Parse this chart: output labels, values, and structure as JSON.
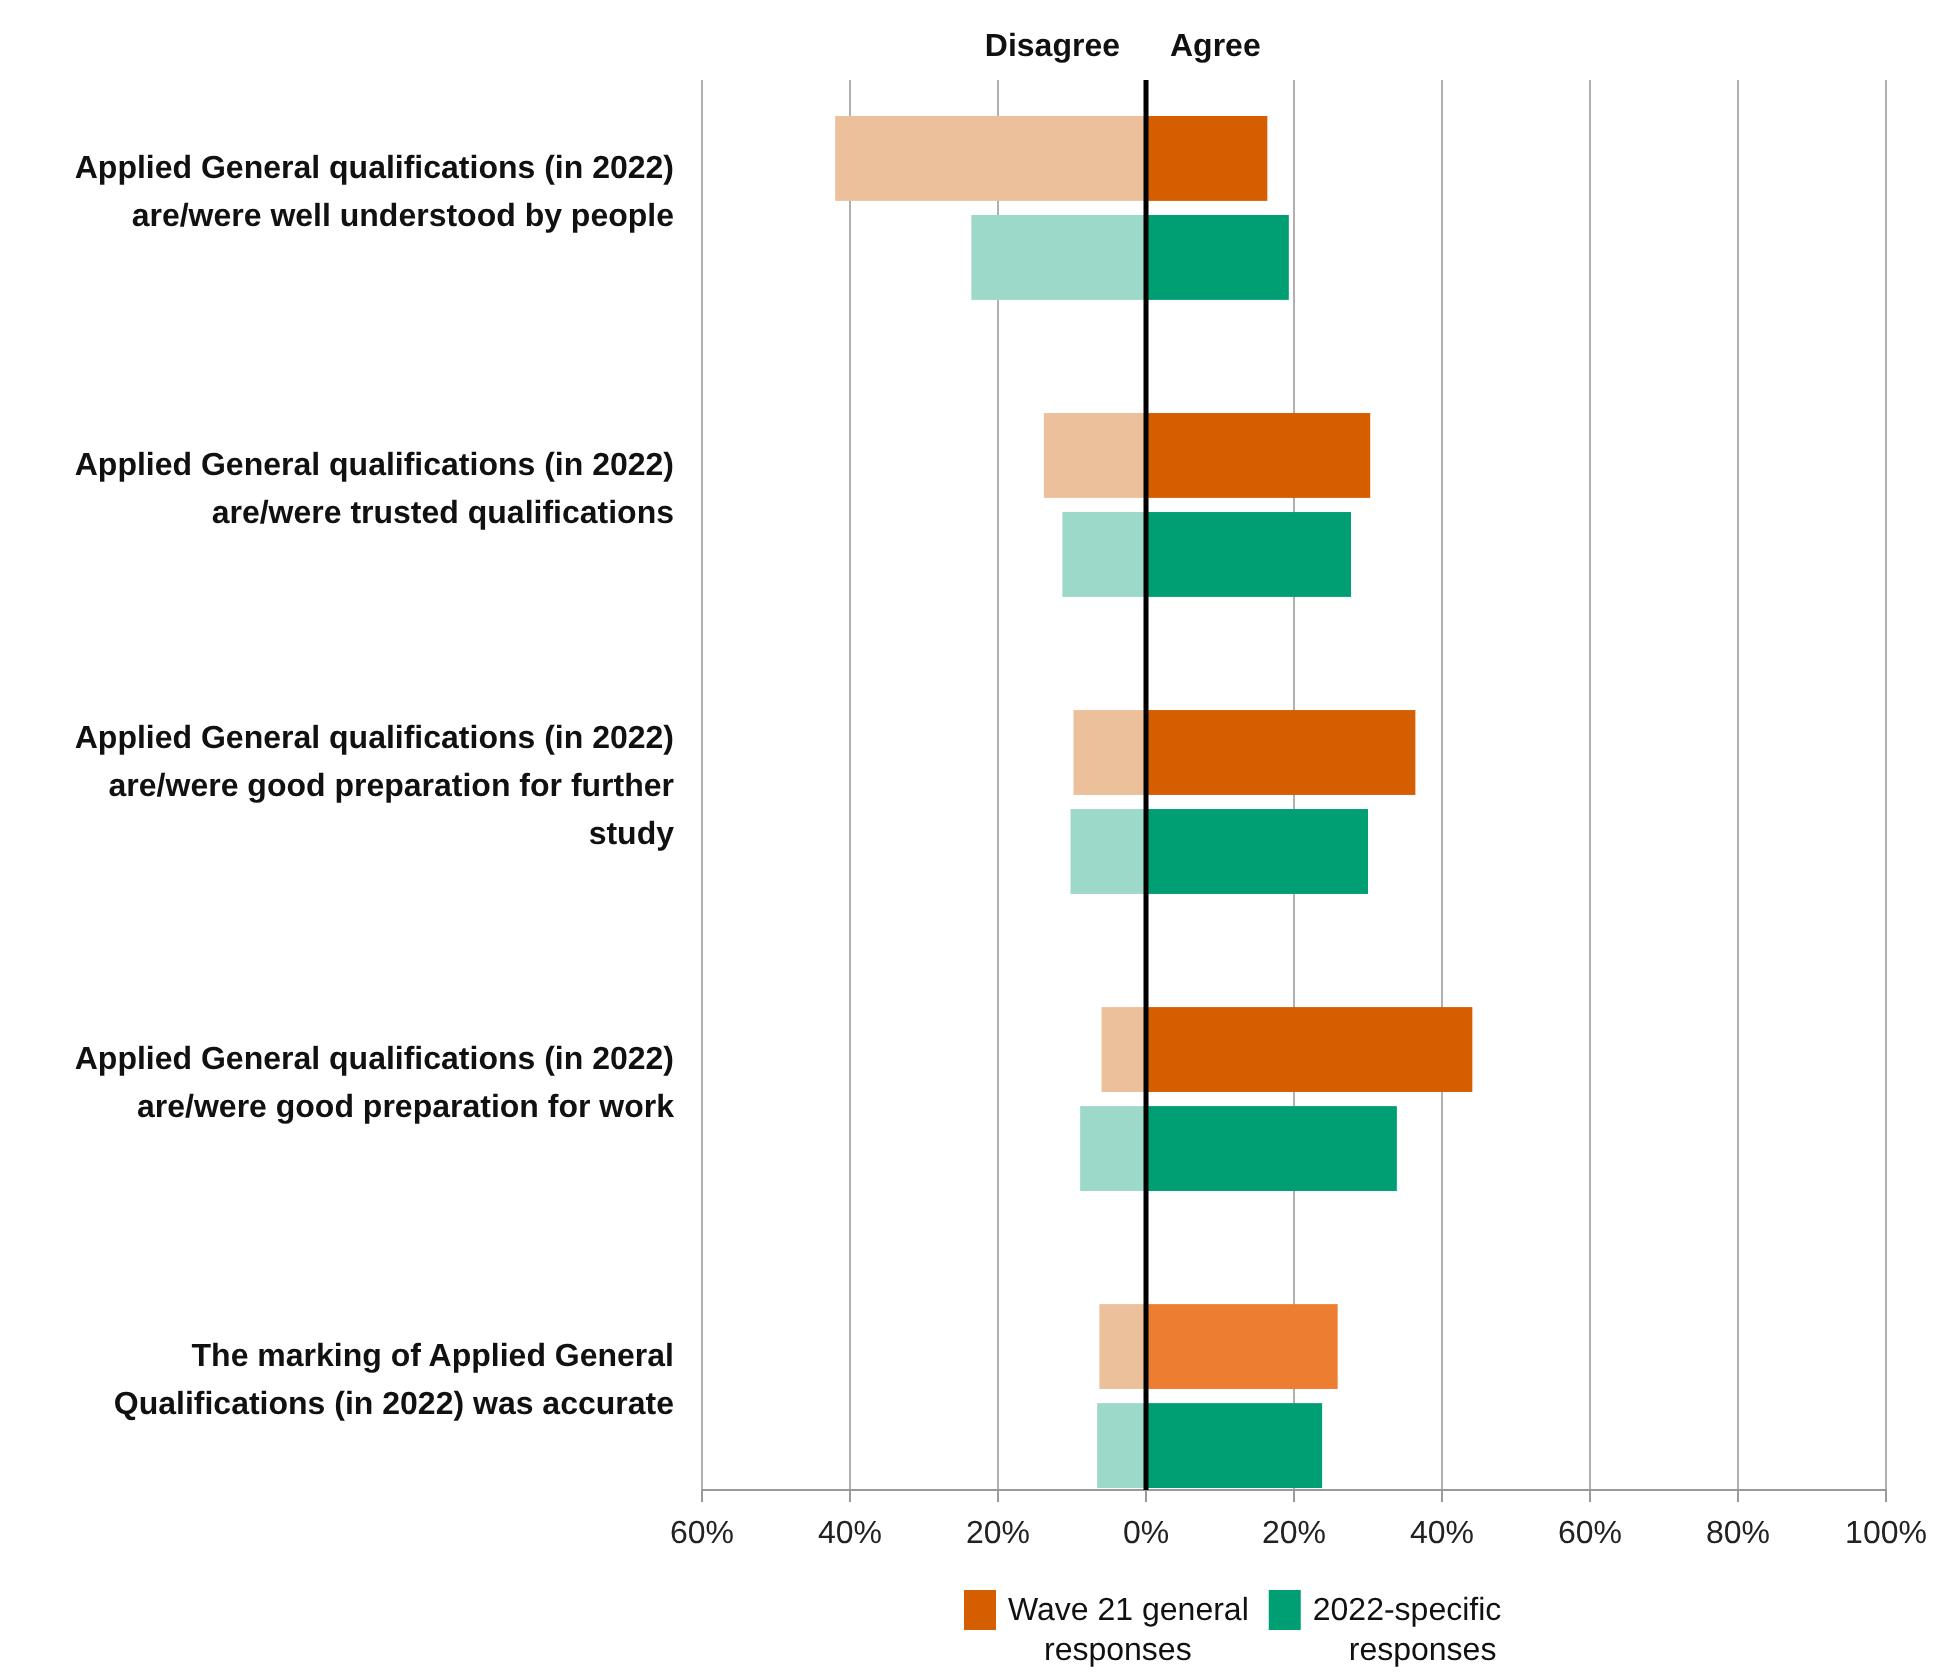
{
  "chart_data": {
    "type": "bar",
    "orientation": "horizontal",
    "stacked": true,
    "categories": [
      "Applied General qualifications (in 2022) are/were well understood by people",
      null,
      null,
      "Applied General qualifications (in 2022) are/were trusted qualifications",
      null,
      null,
      "Applied General qualifications (in 2022) are/were good preparation for further study",
      null,
      null,
      "Applied General qualifications (in 2022) are/were good preparation for work",
      null,
      null,
      "The marking of Applied General Qualifications (in 2022) was accurate",
      null
    ],
    "series": [
      {
        "name": "Wave 21 general responses",
        "color": "#d55e00",
        "colors": [
          "#d55e00",
          null,
          null,
          "#d55e00",
          null,
          null,
          "#d55e00",
          null,
          null,
          "#d55e00",
          null,
          null,
          "#ed7d31",
          null
        ],
        "values": [
          16.4,
          null,
          null,
          30.3,
          null,
          null,
          36.4,
          null,
          null,
          44.1,
          null,
          null,
          25.9,
          null
        ]
      },
      {
        "color": "#ecc09a",
        "values": [
          -42,
          null,
          null,
          -13.8,
          null,
          null,
          -9.8,
          null,
          null,
          -6,
          null,
          null,
          -6.3,
          null
        ]
      },
      {
        "name": "2022-specific responses",
        "color": "#009e73",
        "values": [
          null,
          19.3,
          null,
          null,
          27.7,
          null,
          null,
          30,
          null,
          null,
          33.9,
          null,
          null,
          23.8
        ]
      },
      {
        "color": "#9dd9c8",
        "values": [
          null,
          -23.6,
          null,
          null,
          -11.3,
          null,
          null,
          -10.2,
          null,
          null,
          -8.9,
          null,
          null,
          -6.6
        ]
      }
    ],
    "xlim": [
      -60,
      100
    ],
    "xticks": [
      {
        "value": -60,
        "label": "60%"
      },
      {
        "value": -40,
        "label": "40%"
      },
      {
        "value": -20,
        "label": "20%"
      },
      {
        "value": 0,
        "label": "0%"
      },
      {
        "value": 20,
        "label": "20%"
      },
      {
        "value": 40,
        "label": "40%"
      },
      {
        "value": 60,
        "label": "60%"
      },
      {
        "value": 80,
        "label": "80%"
      },
      {
        "value": 100,
        "label": "100%"
      }
    ],
    "grid": "x",
    "legend": "bottom",
    "annotations": [
      "Disagree",
      "Agree"
    ]
  }
}
